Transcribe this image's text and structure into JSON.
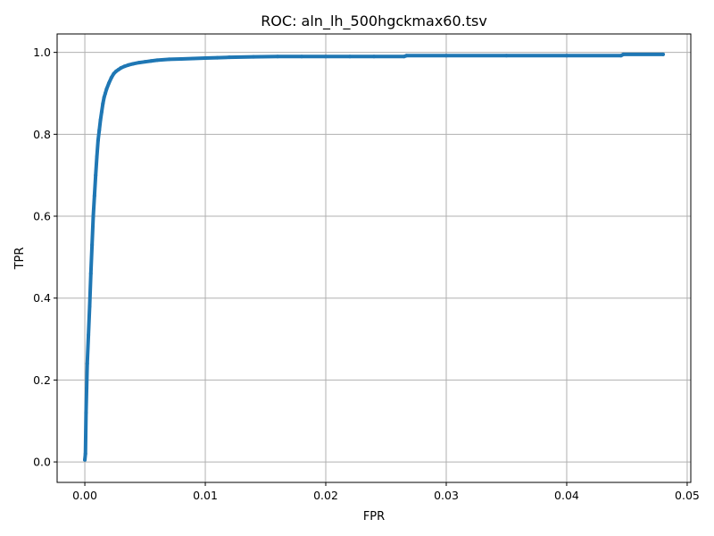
{
  "chart_data": {
    "type": "line",
    "title": "ROC: aln_lh_500hgckmax60.tsv",
    "xlabel": "FPR",
    "ylabel": "TPR",
    "xlim": [
      -0.0023,
      0.0503
    ],
    "ylim": [
      -0.05,
      1.045
    ],
    "x_ticks": [
      0.0,
      0.01,
      0.02,
      0.03,
      0.04,
      0.05
    ],
    "x_tick_labels": [
      "0.00",
      "0.01",
      "0.02",
      "0.03",
      "0.04",
      "0.05"
    ],
    "y_ticks": [
      0.0,
      0.2,
      0.4,
      0.6,
      0.8,
      1.0
    ],
    "y_tick_labels": [
      "0.0",
      "0.2",
      "0.4",
      "0.6",
      "0.8",
      "1.0"
    ],
    "grid": true,
    "color": "#1f77b4",
    "series": [
      {
        "x": [
          0.0,
          5e-05,
          0.0001,
          0.00015,
          0.0002,
          0.0003,
          0.0004,
          0.0005,
          0.0006,
          0.0007,
          0.0008,
          0.0009,
          0.001,
          0.0011,
          0.0012,
          0.0013,
          0.0014,
          0.0015,
          0.0016,
          0.0017,
          0.0018,
          0.002,
          0.0022,
          0.0024,
          0.0026,
          0.0028,
          0.003,
          0.0033,
          0.0036,
          0.004,
          0.0045,
          0.005,
          0.0055,
          0.006,
          0.007,
          0.008,
          0.009,
          0.01,
          0.011,
          0.012,
          0.014,
          0.016,
          0.018,
          0.02,
          0.022,
          0.024,
          0.0265,
          0.0267,
          0.03,
          0.035,
          0.04,
          0.0445,
          0.0447,
          0.048
        ],
        "y": [
          0.005,
          0.02,
          0.12,
          0.18,
          0.24,
          0.31,
          0.38,
          0.46,
          0.53,
          0.6,
          0.65,
          0.7,
          0.745,
          0.785,
          0.81,
          0.835,
          0.855,
          0.875,
          0.89,
          0.9,
          0.91,
          0.925,
          0.938,
          0.948,
          0.954,
          0.958,
          0.962,
          0.966,
          0.969,
          0.972,
          0.975,
          0.977,
          0.979,
          0.981,
          0.983,
          0.984,
          0.985,
          0.986,
          0.987,
          0.988,
          0.989,
          0.99,
          0.99,
          0.99,
          0.99,
          0.99,
          0.99,
          0.992,
          0.992,
          0.992,
          0.992,
          0.992,
          0.995,
          0.995
        ]
      }
    ]
  }
}
